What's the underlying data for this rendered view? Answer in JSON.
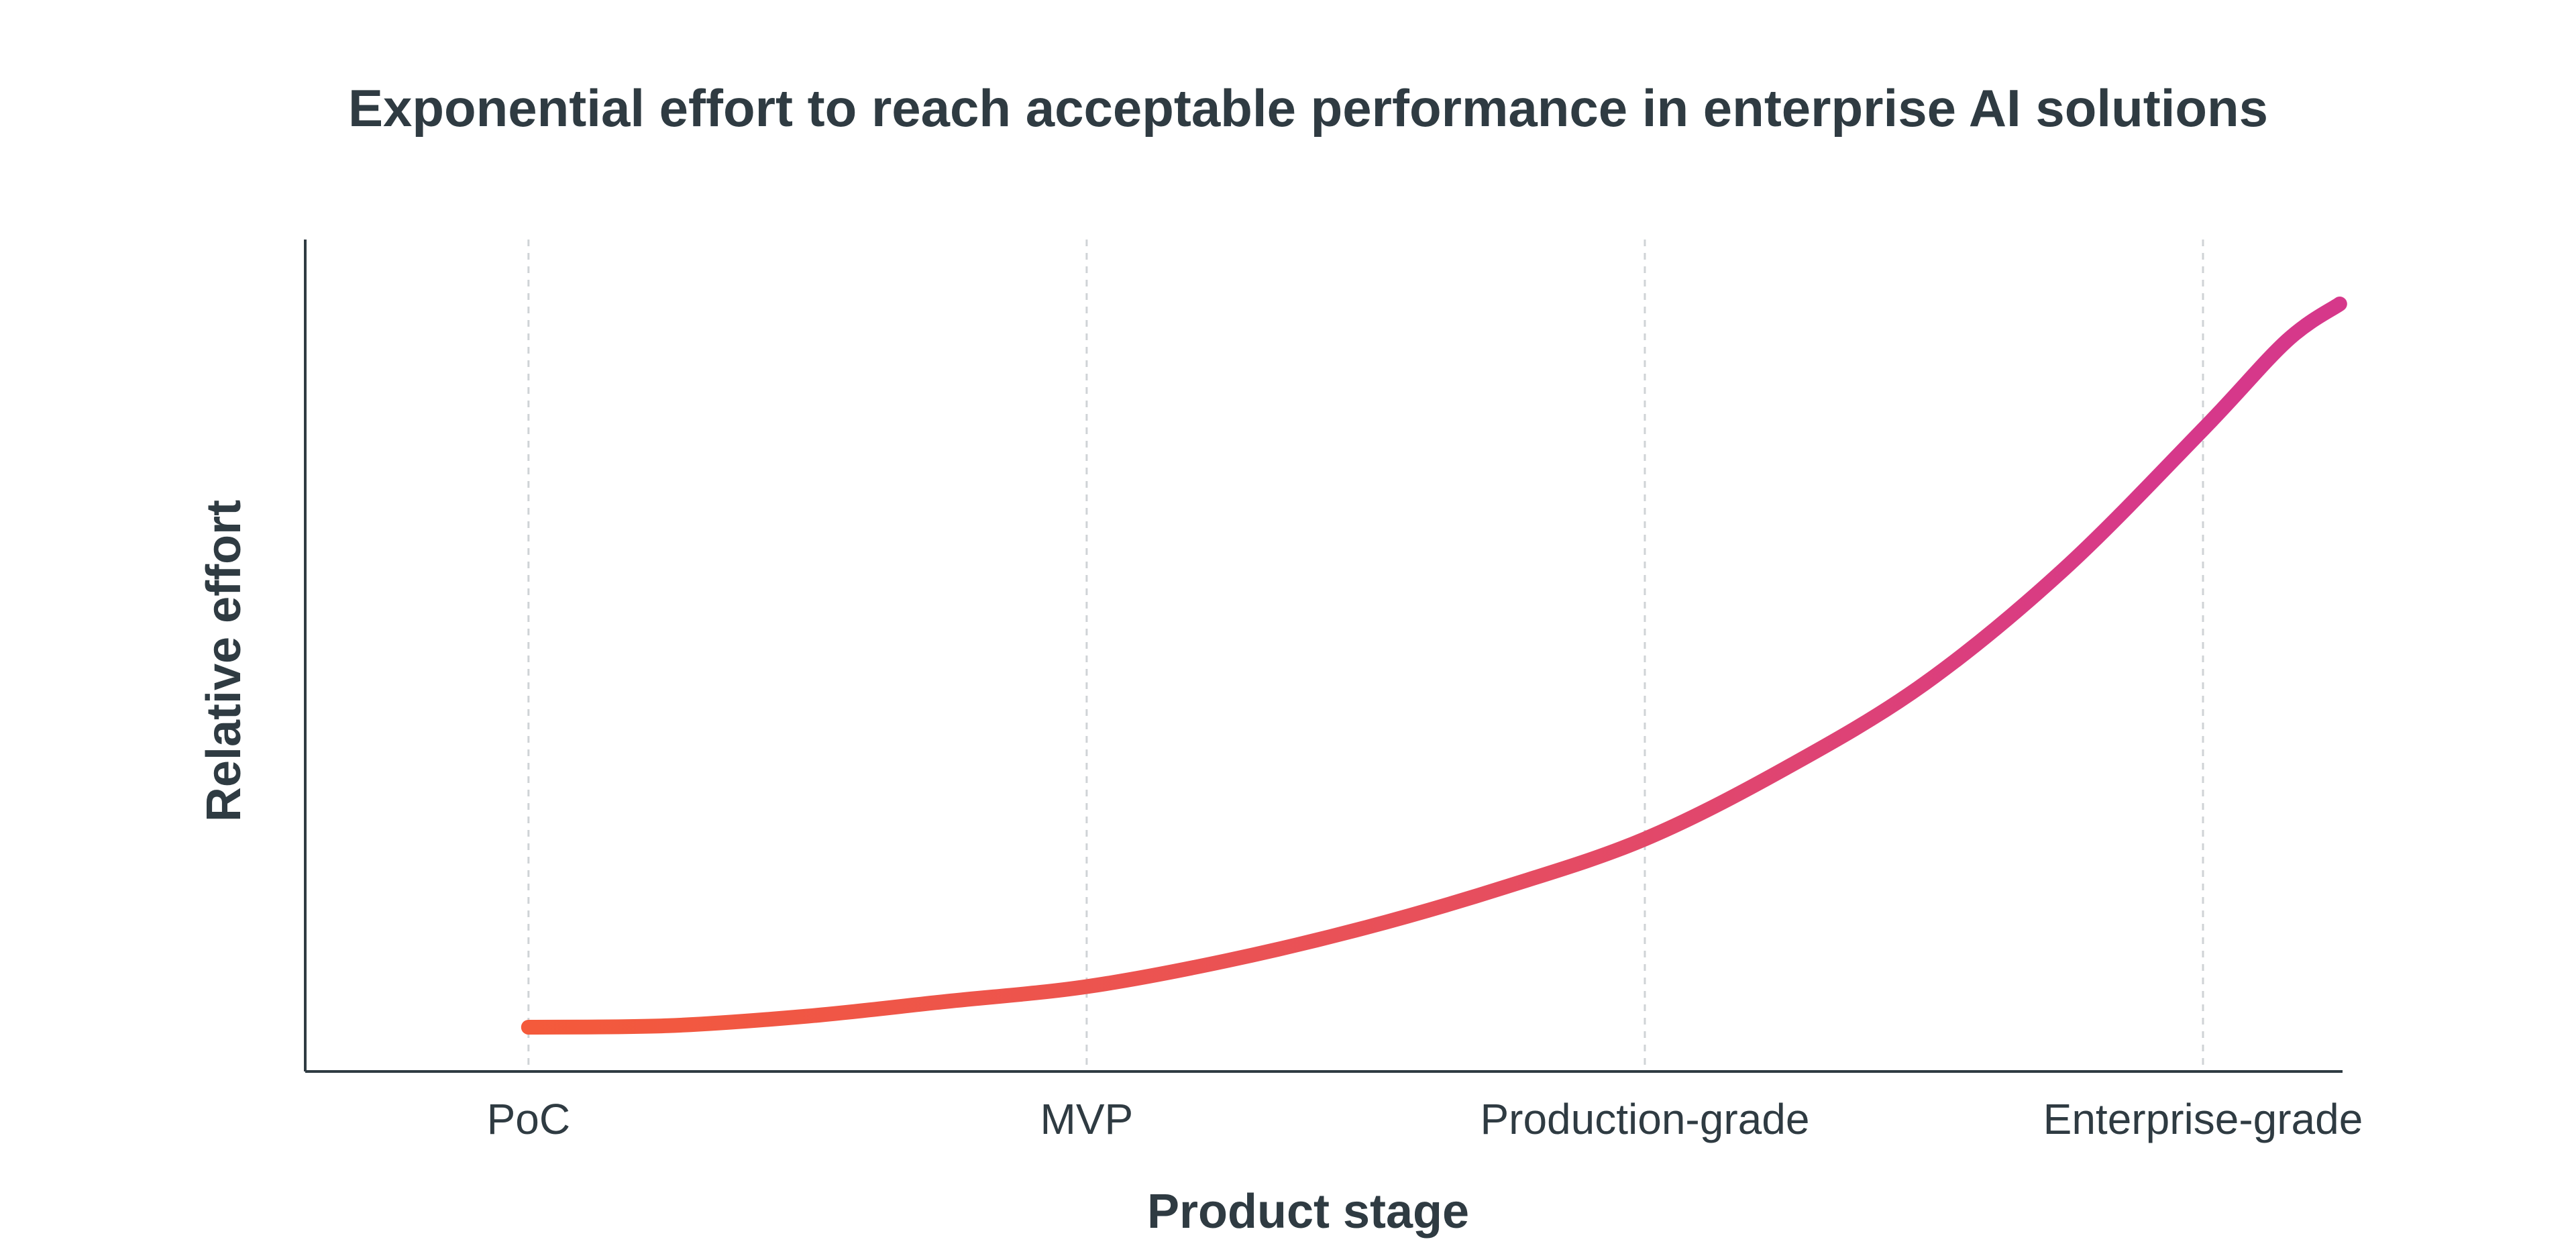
{
  "chart_data": {
    "type": "line",
    "title": "Exponential effort to reach acceptable performance in enterprise AI solutions",
    "xlabel": "Product stage",
    "ylabel": "Relative effort",
    "categories": [
      "PoC",
      "MVP",
      "Production-grade",
      "Enterprise-grade"
    ],
    "xlim": [
      -0.4,
      3.25
    ],
    "ylim": [
      0,
      10
    ],
    "grid": {
      "vertical": true,
      "horizontal": false
    },
    "legend": "none",
    "series": [
      {
        "name": "Relative effort",
        "x": [
          0,
          0.25,
          0.5,
          0.75,
          1,
          1.25,
          1.5,
          1.75,
          2,
          2.25,
          2.5,
          2.75,
          3,
          3.15,
          3.245
        ],
        "values": [
          0.6,
          0.62,
          0.75,
          0.95,
          1.15,
          1.5,
          1.95,
          2.5,
          3.15,
          4.1,
          5.25,
          6.8,
          8.7,
          9.9,
          10.4
        ],
        "color_start": "#f45a3a",
        "color_mid": "#e8505a",
        "color_end": "#d6388a"
      }
    ]
  }
}
